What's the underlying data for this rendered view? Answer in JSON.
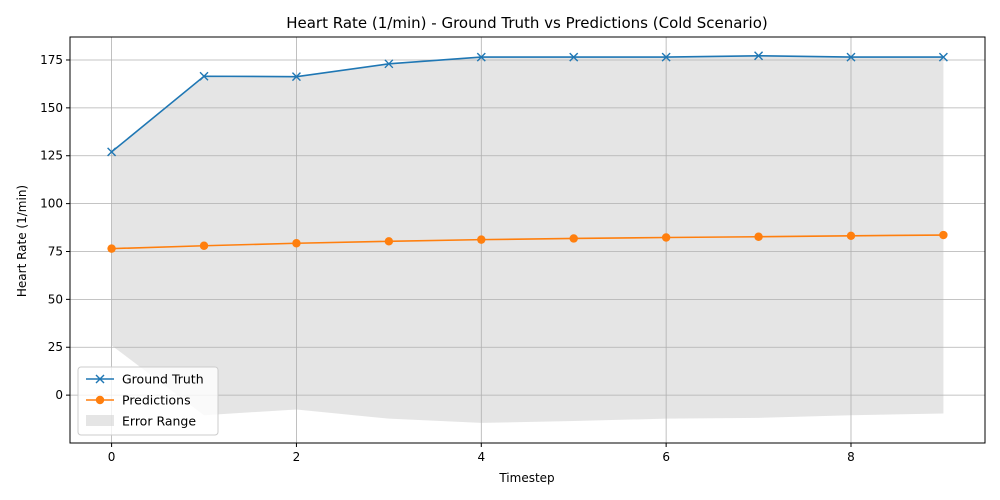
{
  "chart_data": {
    "type": "line",
    "title": "Heart Rate (1/min) - Ground Truth vs Predictions (Cold Scenario)",
    "xlabel": "Timestep",
    "ylabel": "Heart Rate (1/min)",
    "x": [
      0,
      1,
      2,
      3,
      4,
      5,
      6,
      7,
      8,
      9
    ],
    "xlim": [
      -0.45,
      9.45
    ],
    "ylim": [
      -25,
      187
    ],
    "xticks": [
      0,
      2,
      4,
      6,
      8
    ],
    "yticks": [
      0,
      25,
      50,
      75,
      100,
      125,
      150,
      175
    ],
    "grid": true,
    "legend_position": "lower-left",
    "series": [
      {
        "name": "Ground Truth",
        "color": "#1f77b4",
        "marker": "x",
        "values": [
          127.0,
          166.5,
          166.3,
          173.0,
          176.5,
          176.5,
          176.5,
          177.2,
          176.5,
          176.5
        ]
      },
      {
        "name": "Predictions",
        "color": "#ff7f0e",
        "marker": "o",
        "values": [
          76.5,
          78.0,
          79.3,
          80.3,
          81.2,
          81.8,
          82.3,
          82.7,
          83.2,
          83.6
        ]
      }
    ],
    "band": {
      "name": "Error Range",
      "color": "#d3d3d3",
      "lower": [
        26.0,
        -10.5,
        -7.5,
        -12.3,
        -14.5,
        -13.5,
        -12.3,
        -11.9,
        -10.5,
        -9.6
      ],
      "upper": [
        127.0,
        166.5,
        166.3,
        173.0,
        176.5,
        176.5,
        176.5,
        177.2,
        176.5,
        176.5
      ]
    }
  }
}
